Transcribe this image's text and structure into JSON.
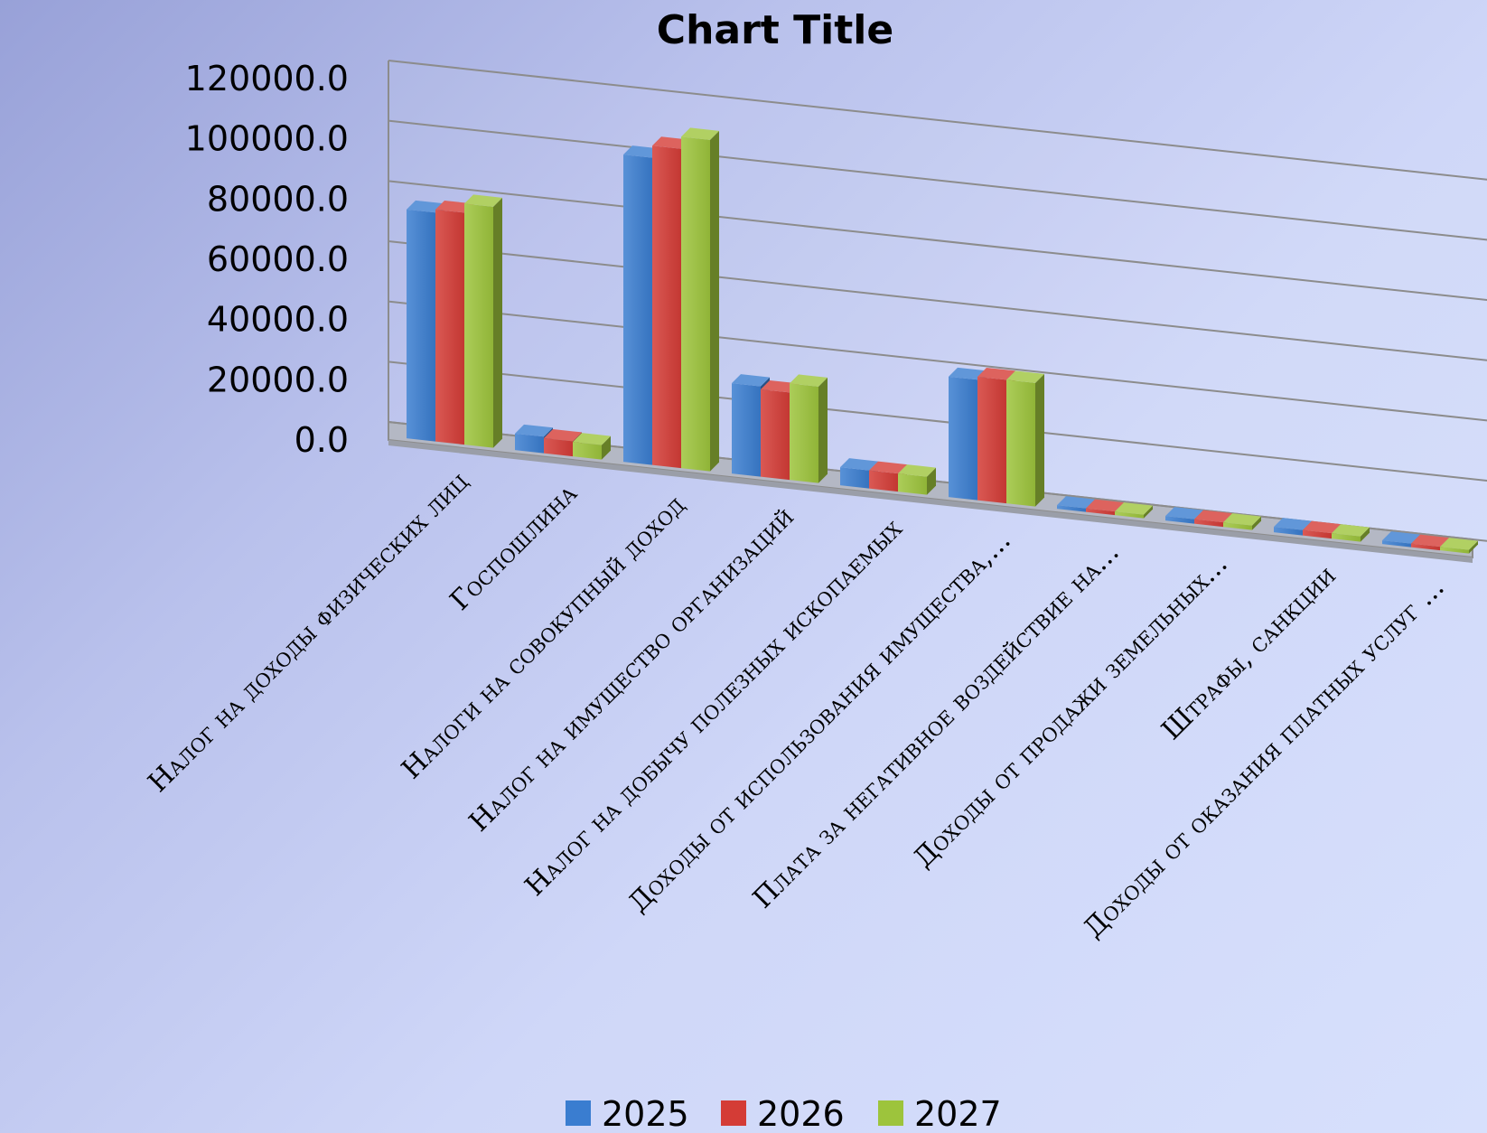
{
  "chart_data": {
    "type": "bar",
    "title": "Chart Title",
    "categories": [
      "Налог на доходы физических лиц",
      "Госпошлина",
      "Налоги на совокупный доход",
      "Налог на имущество организаций",
      "Налог на добычу полезных ископаемых",
      "Доходы от использования имущества,...",
      "Плата за негативное воздействие на...",
      "Доходы от продажи земельных...",
      "Штрафы, санкции",
      "Доходы от оказания платных услуг ..."
    ],
    "series": [
      {
        "name": "2025",
        "color": "#3a7dd0",
        "values": [
          76000,
          5500,
          102000,
          30000,
          6000,
          40000,
          800,
          1500,
          1800,
          300
        ]
      },
      {
        "name": "2026",
        "color": "#d43c36",
        "values": [
          77000,
          5000,
          106000,
          29000,
          6000,
          41000,
          700,
          1500,
          1800,
          300
        ]
      },
      {
        "name": "2027",
        "color": "#9dc43c",
        "values": [
          80000,
          4800,
          110000,
          32000,
          6000,
          41000,
          700,
          1500,
          1800,
          300
        ]
      }
    ],
    "ylim": [
      0,
      120000
    ],
    "yticks": [
      "0.0",
      "20000.0",
      "40000.0",
      "60000.0",
      "80000.0",
      "100000.0",
      "120000.0"
    ],
    "legend_position": "bottom",
    "grid": true
  }
}
